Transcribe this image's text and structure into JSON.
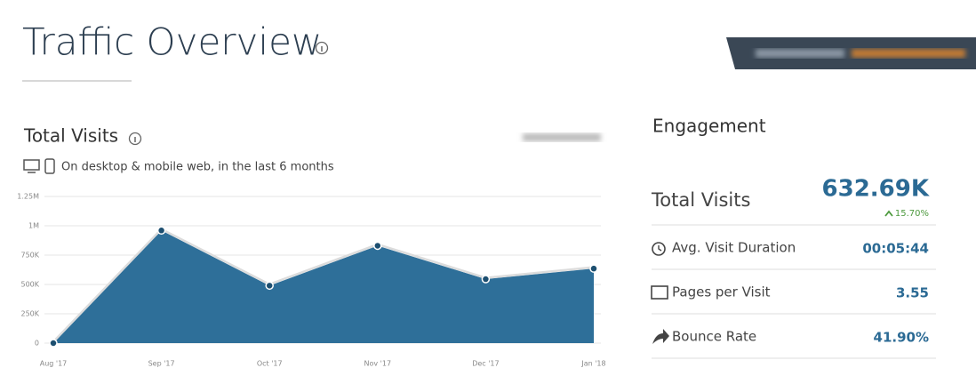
{
  "header": {
    "title": "Traffic Overview"
  },
  "chart_data": {
    "type": "area",
    "title": "Total Visits",
    "subtitle": "On desktop & mobile web, in the last 6 months",
    "categories": [
      "Aug '17",
      "Sep '17",
      "Oct '17",
      "Nov '17",
      "Dec '17",
      "Jan '18"
    ],
    "values": [
      0,
      960000,
      490000,
      830000,
      545000,
      635000
    ],
    "color": "#2e6f99",
    "ylim": [
      0,
      1250000
    ],
    "yticks": [
      0,
      {
        "value": 250000,
        "label": "250K"
      },
      {
        "value": 500000,
        "label": "500K"
      },
      {
        "value": 750000,
        "label": "750K"
      },
      {
        "value": 1000000,
        "label": "1M"
      },
      {
        "value": 1250000,
        "label": "1.25M"
      }
    ],
    "grid": true
  },
  "engagement": {
    "title": "Engagement",
    "total": {
      "label": "Total Visits",
      "value": "632.69K",
      "change": "15.70%"
    },
    "rows": [
      {
        "label": "Avg. Visit Duration",
        "value": "00:05:44"
      },
      {
        "label": "Pages per Visit",
        "value": "3.55"
      },
      {
        "label": "Bounce Rate",
        "value": "41.90%"
      }
    ]
  }
}
